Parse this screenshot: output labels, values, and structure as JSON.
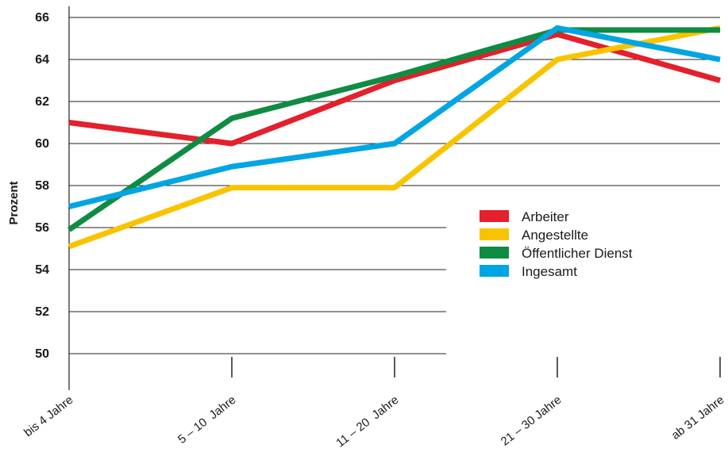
{
  "chart_data": {
    "type": "line",
    "title": "",
    "xlabel": "",
    "ylabel": "Prozent",
    "categories": [
      "bis 4 Jahre",
      "5 – 10  Jahre",
      "11 – 20  Jahre",
      "21 – 30 Jahre",
      "ab 31 Jahre"
    ],
    "ylim": [
      50,
      66
    ],
    "yticks": [
      50,
      52,
      54,
      56,
      58,
      60,
      62,
      64,
      66
    ],
    "grid": "horizontal",
    "legend_position": "right",
    "series": [
      {
        "name": "Arbeiter",
        "color": "#e3202b",
        "values": [
          61.0,
          60.0,
          63.0,
          65.2,
          63.0
        ]
      },
      {
        "name": "Angestellte",
        "color": "#f8c400",
        "values": [
          55.1,
          57.9,
          57.9,
          64.0,
          65.5
        ]
      },
      {
        "name": "Öffentlicher Dienst",
        "color": "#0f8c43",
        "values": [
          55.9,
          61.2,
          63.2,
          65.4,
          65.4
        ]
      },
      {
        "name": "Ingesamt",
        "color": "#00a5e3",
        "values": [
          57.0,
          58.9,
          60.0,
          65.5,
          64.0
        ]
      }
    ]
  }
}
